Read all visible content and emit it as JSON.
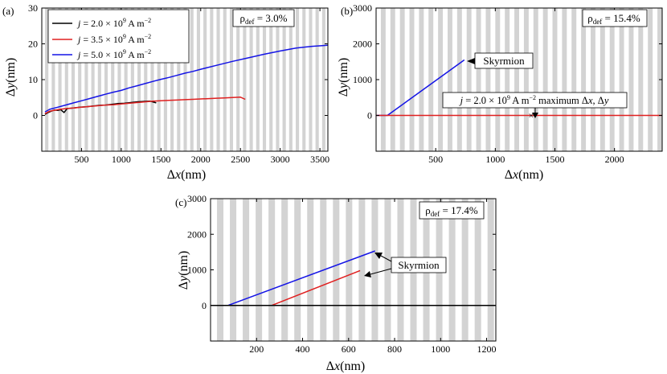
{
  "figure": {
    "panels": [
      "(a)",
      "(b)",
      "(c)"
    ],
    "annotation_b": "j = 2.0 × 10^9 A m^-2 maximum Δx, Δy",
    "skyrmion_label": "Skyrmion"
  },
  "chart_data": [
    {
      "type": "line",
      "panel": "(a)",
      "xlabel": "Δx(nm)",
      "ylabel": "Δy(nm)",
      "xlim": [
        0,
        3600
      ],
      "ylim": [
        -10,
        30
      ],
      "xticks": [
        500,
        1000,
        1500,
        2000,
        2500,
        3000,
        3500
      ],
      "yticks": [
        0,
        10,
        20,
        30
      ],
      "stripe_period": 83,
      "rho_label": "ρdef = 3.0%",
      "legend_position": "top-left",
      "series": [
        {
          "name": "j = 2.0 × 10^9 A m^-2",
          "color": "#000000",
          "x": [
            40,
            80,
            120,
            160,
            200,
            240,
            280,
            320,
            400,
            480,
            560,
            640,
            720,
            800,
            880,
            960,
            1040,
            1120,
            1200,
            1280,
            1360,
            1440
          ],
          "y": [
            0.3,
            0.8,
            1.2,
            1.5,
            1.4,
            1.6,
            0.8,
            1.9,
            2.1,
            2.3,
            2.4,
            2.6,
            2.8,
            2.9,
            3.1,
            3.3,
            3.4,
            3.6,
            3.8,
            3.9,
            4.0,
            3.5
          ]
        },
        {
          "name": "j = 3.5 × 10^9 A m^-2",
          "color": "#e02020",
          "x": [
            40,
            100,
            200,
            300,
            400,
            500,
            600,
            700,
            800,
            900,
            1000,
            1100,
            1200,
            1300,
            1400,
            1500,
            1600,
            1700,
            1800,
            1900,
            2000,
            2100,
            2200,
            2300,
            2400,
            2500,
            2560
          ],
          "y": [
            0.5,
            1.2,
            1.6,
            1.9,
            2.1,
            2.3,
            2.5,
            2.7,
            2.9,
            3.0,
            3.2,
            3.4,
            3.6,
            3.8,
            4.0,
            4.1,
            4.2,
            4.3,
            4.4,
            4.5,
            4.6,
            4.7,
            4.8,
            4.9,
            5.0,
            5.1,
            4.5
          ]
        },
        {
          "name": "j = 5.0 × 10^9 A m^-2",
          "color": "#1414e6",
          "x": [
            40,
            100,
            200,
            300,
            400,
            500,
            600,
            700,
            800,
            900,
            1000,
            1100,
            1200,
            1300,
            1400,
            1500,
            1600,
            1700,
            1800,
            1900,
            2000,
            2200,
            2400,
            2600,
            2800,
            3000,
            3200,
            3400,
            3600
          ],
          "y": [
            1.0,
            1.7,
            2.3,
            2.9,
            3.5,
            4.1,
            4.7,
            5.3,
            5.9,
            6.5,
            7.0,
            7.7,
            8.3,
            8.9,
            9.5,
            10.1,
            10.6,
            11.2,
            11.8,
            12.3,
            12.9,
            14.0,
            15.1,
            16.1,
            17.1,
            18.0,
            18.8,
            19.3,
            19.6
          ]
        }
      ]
    },
    {
      "type": "line",
      "panel": "(b)",
      "xlabel": "Δx(nm)",
      "ylabel": "Δy(nm)",
      "xlim": [
        0,
        2400
      ],
      "ylim": [
        -1000,
        3000
      ],
      "xticks": [
        500,
        1000,
        1500,
        2000
      ],
      "yticks": [
        0,
        1000,
        2000,
        3000
      ],
      "stripe_period": 80,
      "rho_label": "ρdef = 15.4%",
      "series": [
        {
          "name": "skyrmion trajectory",
          "color": "#1414e6",
          "x": [
            0,
            95,
            740
          ],
          "y": [
            0,
            0,
            1550
          ]
        },
        {
          "name": "reference line",
          "color": "#e02020",
          "x": [
            0,
            2400
          ],
          "y": [
            0,
            0
          ]
        }
      ],
      "markers": [
        {
          "x": 1300,
          "y": 0,
          "symbol": "×"
        }
      ]
    },
    {
      "type": "line",
      "panel": "(c)",
      "xlabel": "Δx(nm)",
      "ylabel": "Δy(nm)",
      "xlim": [
        0,
        1240
      ],
      "ylim": [
        -1000,
        3000
      ],
      "xticks": [
        200,
        400,
        600,
        800,
        1000,
        1200
      ],
      "yticks": [
        0,
        1000,
        2000,
        3000
      ],
      "stripe_period": 56,
      "rho_label": "ρdef = 17.4%",
      "series": [
        {
          "name": "blue trajectory",
          "color": "#1414e6",
          "x": [
            0,
            75,
            715
          ],
          "y": [
            0,
            0,
            1530
          ]
        },
        {
          "name": "red trajectory",
          "color": "#e02020",
          "x": [
            265,
            650
          ],
          "y": [
            0,
            980
          ]
        },
        {
          "name": "baseline",
          "color": "#000000",
          "x": [
            0,
            1240
          ],
          "y": [
            0,
            0
          ]
        }
      ]
    }
  ]
}
